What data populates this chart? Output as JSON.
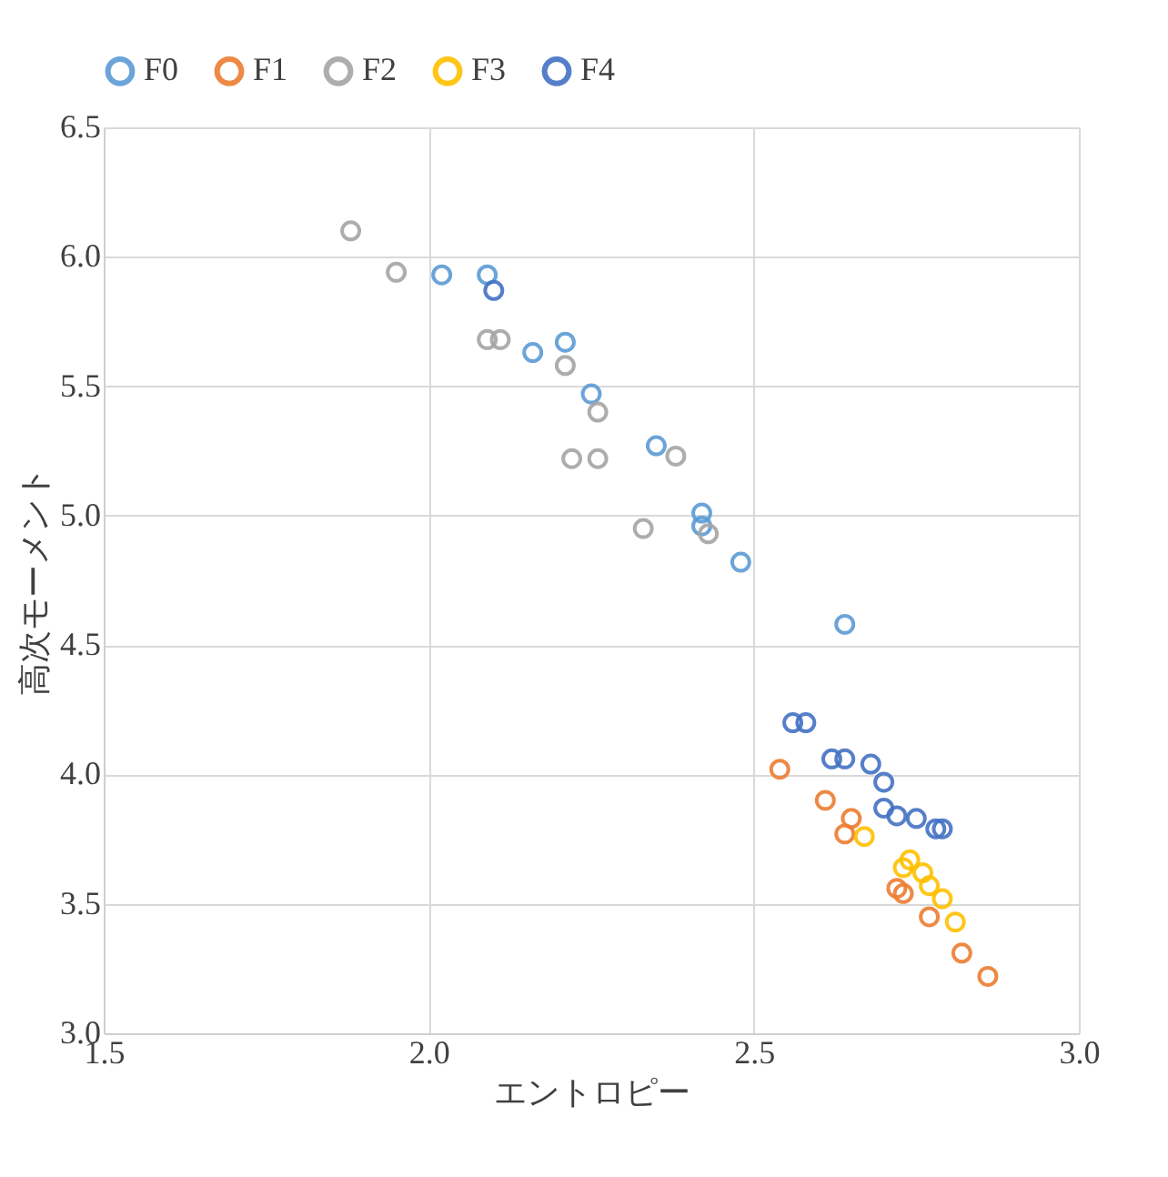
{
  "chart_data": {
    "type": "scatter",
    "xlabel": "エントロピー",
    "ylabel": "高次モーメント",
    "xlim": [
      1.5,
      3.0
    ],
    "xticks": [
      {
        "value": 1.5,
        "label": "1.5"
      },
      {
        "value": 2.0,
        "label": "2.0"
      },
      {
        "value": 2.5,
        "label": "2.5"
      },
      {
        "value": 3.0,
        "label": "3.0"
      }
    ],
    "ylim": [
      3.0,
      6.5
    ],
    "yticks": [
      {
        "value": 3.0,
        "label": "3.0"
      },
      {
        "value": 3.5,
        "label": "3.5"
      },
      {
        "value": 4.0,
        "label": "4.0"
      },
      {
        "value": 4.5,
        "label": "4.5"
      },
      {
        "value": 5.0,
        "label": "5.0"
      },
      {
        "value": 5.5,
        "label": "5.5"
      },
      {
        "value": 6.0,
        "label": "6.0"
      },
      {
        "value": 6.5,
        "label": "6.5"
      }
    ],
    "grid": true,
    "legend": "top",
    "marker": "circle",
    "series": [
      {
        "name": "F0",
        "color": "#5b9bd5",
        "x": [
          2.02,
          2.09,
          2.16,
          2.21,
          2.25,
          2.35,
          2.42,
          2.42,
          2.48,
          2.64
        ],
        "values": [
          5.93,
          5.93,
          5.63,
          5.67,
          5.47,
          5.27,
          5.01,
          4.96,
          4.82,
          4.58
        ]
      },
      {
        "name": "F1",
        "color": "#ed7d31",
        "x": [
          2.54,
          2.61,
          2.65,
          2.64,
          2.72,
          2.73,
          2.77,
          2.82,
          2.86
        ],
        "values": [
          4.02,
          3.9,
          3.83,
          3.77,
          3.56,
          3.54,
          3.45,
          3.31,
          3.22
        ]
      },
      {
        "name": "F2",
        "color": "#a5a5a5",
        "x": [
          1.88,
          1.95,
          2.09,
          2.11,
          2.21,
          2.26,
          2.22,
          2.26,
          2.33,
          2.38,
          2.43
        ],
        "values": [
          6.1,
          5.94,
          5.68,
          5.68,
          5.58,
          5.4,
          5.22,
          5.22,
          4.95,
          5.23,
          4.93
        ]
      },
      {
        "name": "F3",
        "color": "#ffc000",
        "x": [
          2.67,
          2.73,
          2.74,
          2.76,
          2.77,
          2.79,
          2.81
        ],
        "values": [
          3.76,
          3.64,
          3.67,
          3.62,
          3.57,
          3.52,
          3.43
        ]
      },
      {
        "name": "F4",
        "color": "#4472c4",
        "x": [
          2.1,
          2.56,
          2.58,
          2.62,
          2.64,
          2.68,
          2.7,
          2.7,
          2.72,
          2.75,
          2.78,
          2.79
        ],
        "values": [
          5.87,
          4.2,
          4.2,
          4.06,
          4.06,
          4.04,
          3.97,
          3.87,
          3.84,
          3.83,
          3.79,
          3.79
        ]
      }
    ]
  }
}
